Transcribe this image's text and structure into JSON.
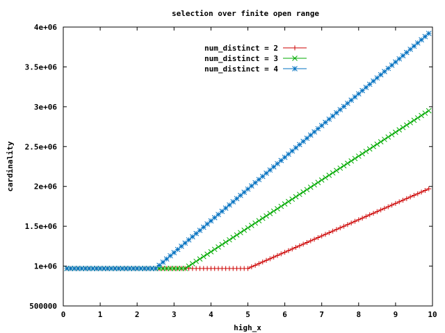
{
  "chart_data": {
    "type": "line",
    "title": "selection over finite open range",
    "xlabel": "high_x",
    "ylabel": "cardinality",
    "xlim": [
      0,
      10
    ],
    "ylim": [
      500000,
      4000000
    ],
    "x_ticks": [
      0,
      1,
      2,
      3,
      4,
      5,
      6,
      7,
      8,
      9,
      10
    ],
    "x_tick_labels": [
      "0",
      "1",
      "2",
      "3",
      "4",
      "5",
      "6",
      "7",
      "8",
      "9",
      "10"
    ],
    "y_ticks": [
      500000,
      1000000,
      1500000,
      2000000,
      2500000,
      3000000,
      3500000,
      4000000
    ],
    "y_tick_labels": [
      "500000",
      "1e+06",
      "1.5e+06",
      "2e+06",
      "2.5e+06",
      "3e+06",
      "3.5e+06",
      "4e+06"
    ],
    "grid": false,
    "legend_position": "top-center",
    "x_start": 0.1,
    "x_step": 0.1,
    "series": [
      {
        "name": "num_distinct = 2",
        "color": "#cc0000",
        "marker": "plus",
        "flat_value": 970000,
        "knee_x": 5.0,
        "end_x": 9.9,
        "end_value": 1970000
      },
      {
        "name": "num_distinct = 3",
        "color": "#00aa00",
        "marker": "cross",
        "flat_value": 970000,
        "knee_x": 3.3,
        "end_x": 9.9,
        "end_value": 2950000
      },
      {
        "name": "num_distinct = 4",
        "color": "#0070c0",
        "marker": "star",
        "flat_value": 970000,
        "knee_x": 2.5,
        "end_x": 9.9,
        "end_value": 3920000
      }
    ]
  }
}
